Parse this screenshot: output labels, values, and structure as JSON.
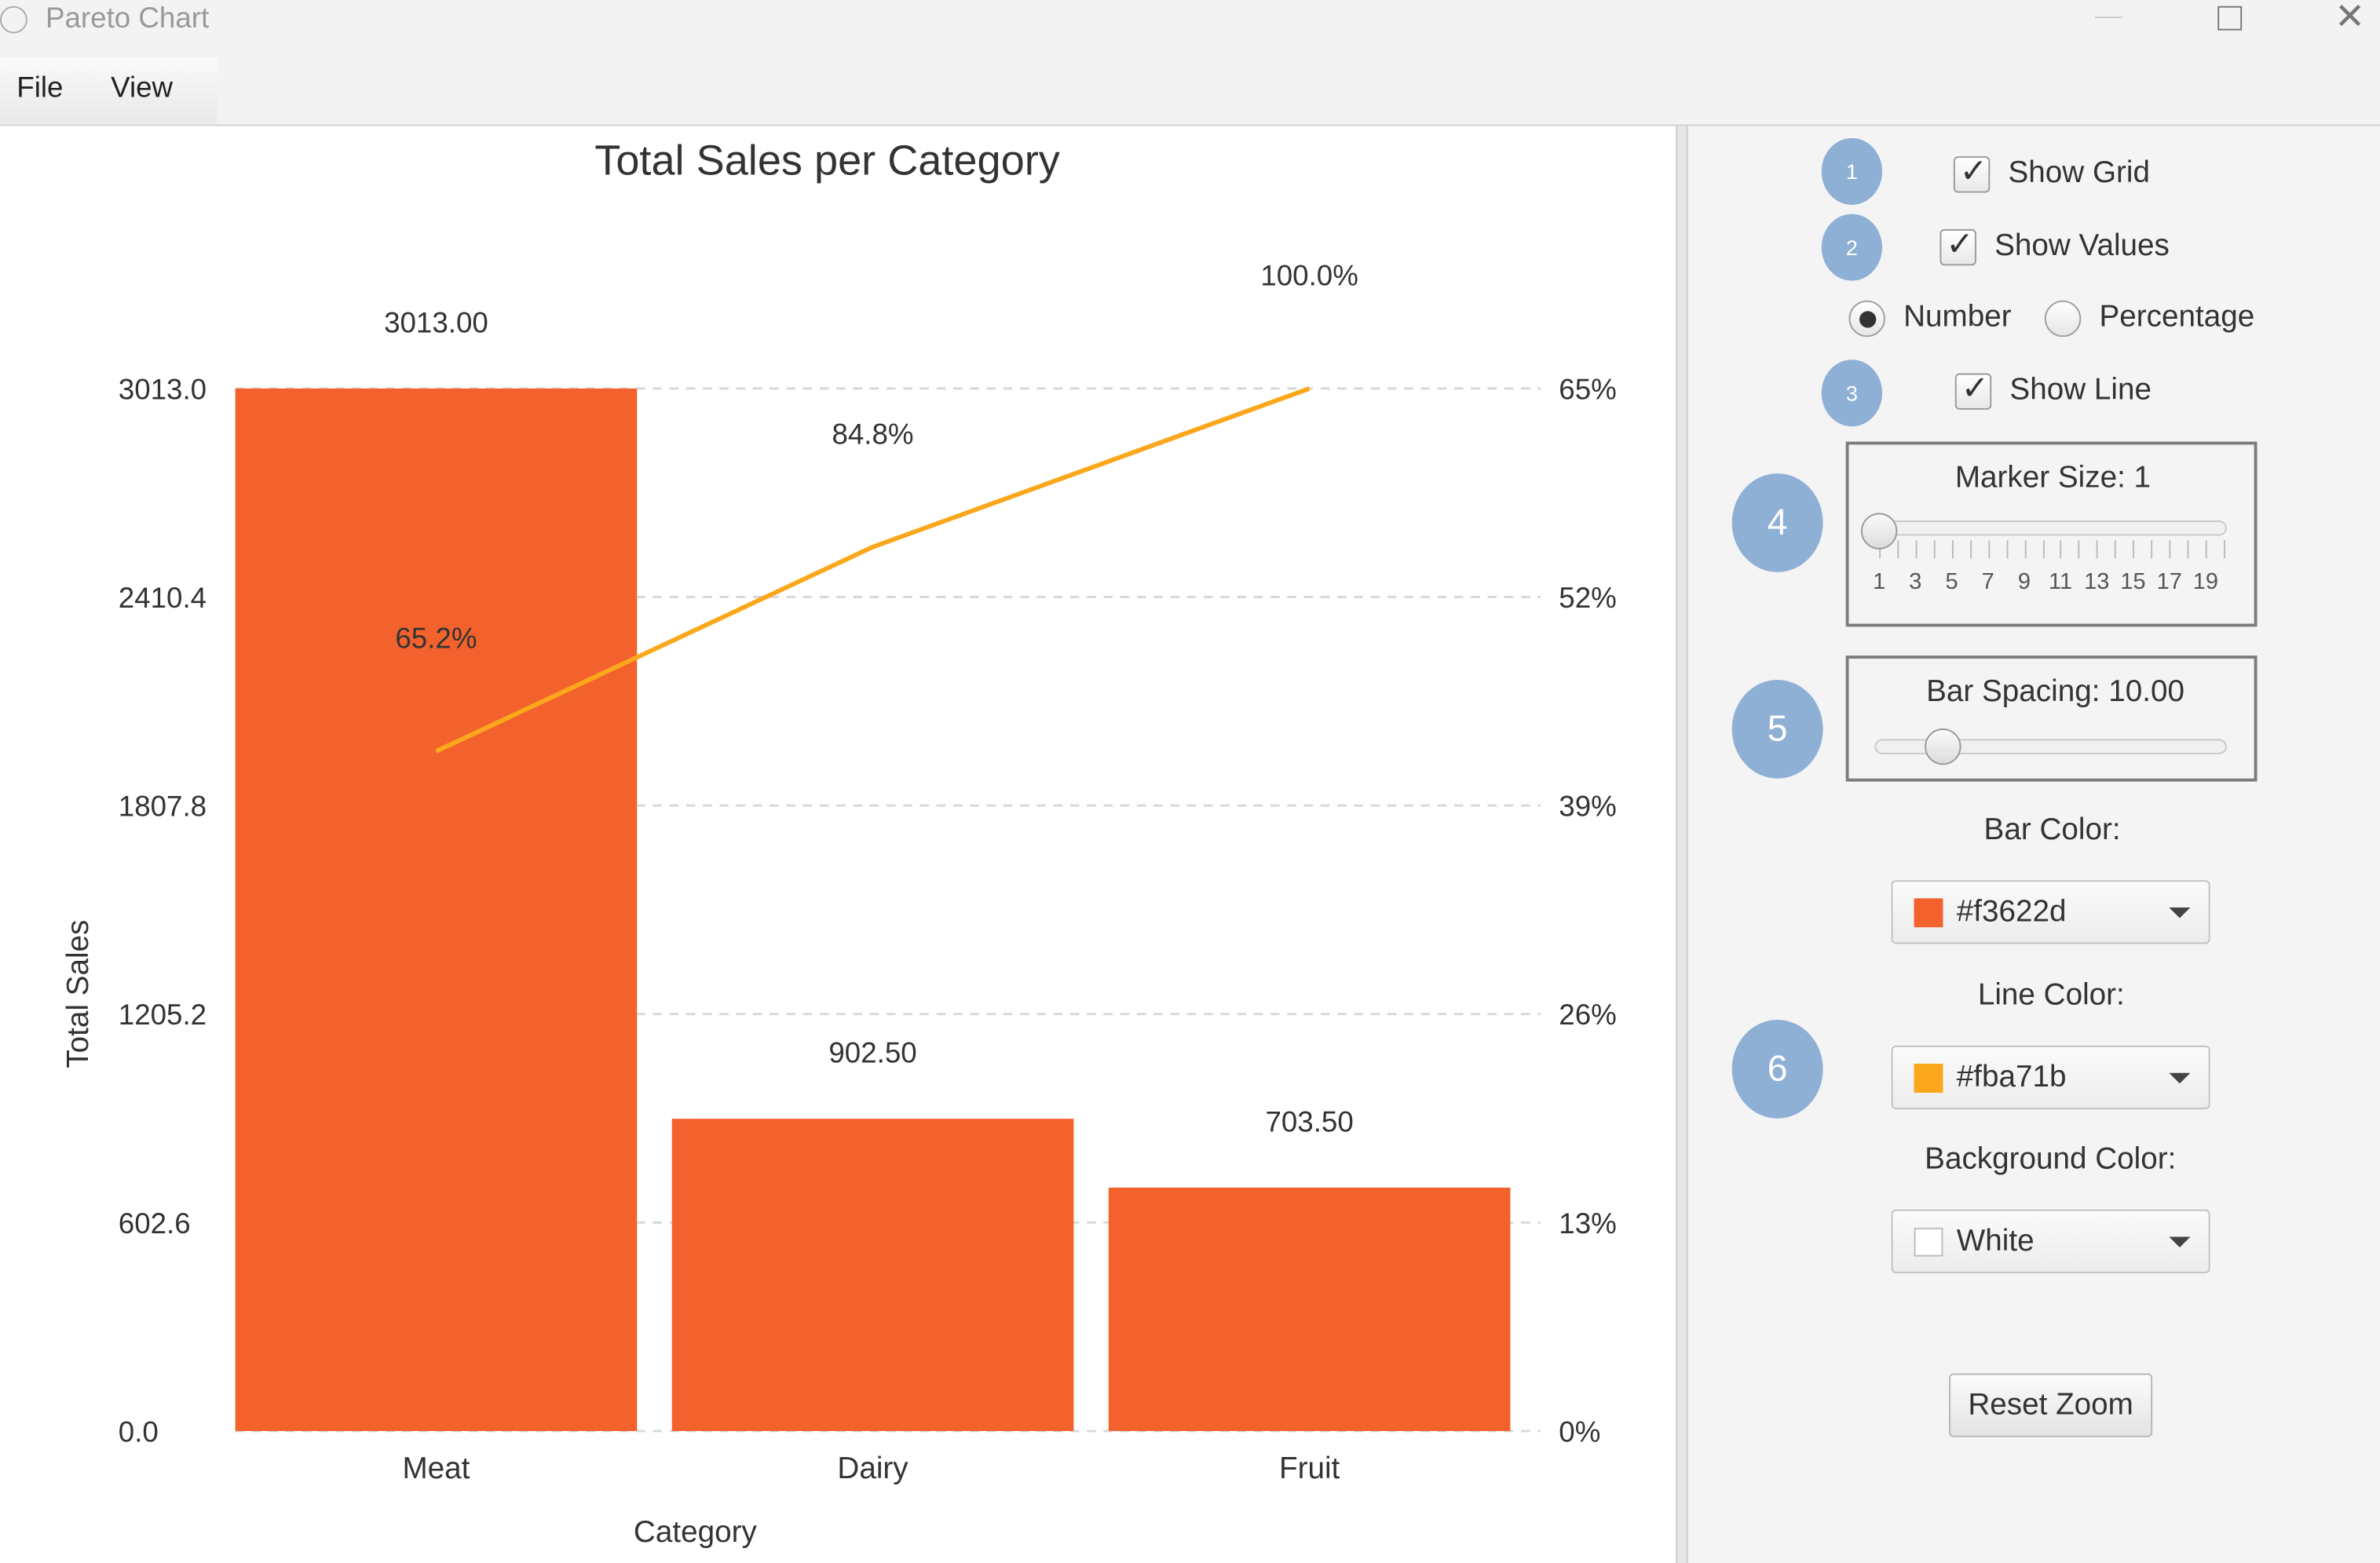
{
  "window": {
    "title": "Pareto Chart",
    "controls": [
      "minimize",
      "maximize",
      "close"
    ]
  },
  "menu": {
    "items": [
      {
        "label": "File"
      },
      {
        "label": "View"
      }
    ]
  },
  "chart_data": {
    "type": "bar",
    "title": "Total Sales per Category",
    "xlabel": "Category",
    "ylabel": "Total Sales",
    "categories": [
      "Meat",
      "Dairy",
      "Fruit"
    ],
    "values": [
      3013.0,
      902.5,
      703.5
    ],
    "value_labels": [
      "3013.00",
      "902.50",
      "703.50"
    ],
    "ylim": [
      0,
      3013.0
    ],
    "y_ticks": [
      "0.0",
      "602.6",
      "1205.2",
      "1807.8",
      "2410.4",
      "3013.0"
    ],
    "y2_ticks": [
      "0%",
      "13%",
      "26%",
      "39%",
      "52%",
      "65%"
    ],
    "line": {
      "type": "line",
      "values": [
        65.2,
        84.8,
        100.0
      ],
      "labels": [
        "65.2%",
        "84.8%",
        "100.0%"
      ],
      "ylim": [
        0,
        100
      ]
    },
    "grid": true,
    "bar_color": "#f3622d",
    "line_color": "#fba71b"
  },
  "panel": {
    "show_grid": {
      "badge": "1",
      "label": "Show Grid",
      "checked": true
    },
    "show_values": {
      "badge": "2",
      "label": "Show Values",
      "checked": true
    },
    "value_mode": {
      "options": [
        "Number",
        "Percentage"
      ],
      "selected": "Number"
    },
    "show_line": {
      "badge": "3",
      "label": "Show Line",
      "checked": true
    },
    "marker_size": {
      "badge": "4",
      "label": "Marker Size: 1",
      "value": 1,
      "min": 1,
      "max": 20,
      "ticks": [
        "1",
        "3",
        "5",
        "7",
        "9",
        "11",
        "13",
        "15",
        "17",
        "19"
      ]
    },
    "bar_spacing": {
      "badge": "5",
      "label": "Bar Spacing: 10.00",
      "value": 10.0
    },
    "bar_color": {
      "label": "Bar Color:",
      "value": "#f3622d",
      "swatch": "#f3622d"
    },
    "badge6": "6",
    "line_color": {
      "label": "Line Color:",
      "value": "#fba71b",
      "swatch": "#fba71b"
    },
    "background_color": {
      "label": "Background Color:",
      "value": "White",
      "swatch": "#ffffff"
    },
    "reset_zoom": "Reset Zoom"
  }
}
